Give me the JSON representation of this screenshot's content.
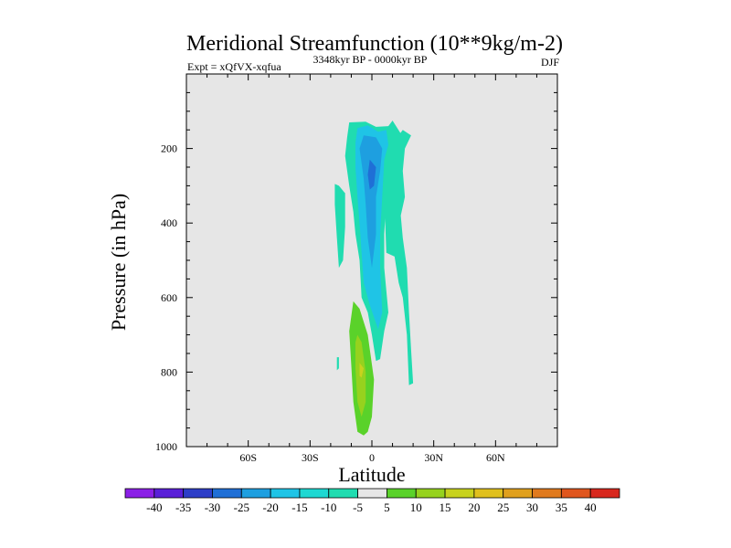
{
  "chart_data": {
    "type": "contour",
    "title": "Meridional Streamfunction (10**9kg/m-2)",
    "subtitle_left": "Expt = xQfVX-xqfua",
    "subtitle_center": "3348kyr BP - 0000kyr BP",
    "subtitle_right": "DJF",
    "xlabel": "Latitude",
    "ylabel": "Pressure (in hPa)",
    "xlim": [
      -90,
      90
    ],
    "ylim": [
      0,
      1000
    ],
    "y_inverted": true,
    "x_ticks": [
      {
        "value": -60,
        "label": "60S"
      },
      {
        "value": -30,
        "label": "30S"
      },
      {
        "value": 0,
        "label": "0"
      },
      {
        "value": 30,
        "label": "30N"
      },
      {
        "value": 60,
        "label": "60N"
      }
    ],
    "y_ticks": [
      {
        "value": 200,
        "label": "200"
      },
      {
        "value": 400,
        "label": "400"
      },
      {
        "value": 600,
        "label": "600"
      },
      {
        "value": 800,
        "label": "800"
      },
      {
        "value": 1000,
        "label": "1000"
      }
    ],
    "colorbar": {
      "labels": [
        "-40",
        "-35",
        "-30",
        "-25",
        "-20",
        "-15",
        "-10",
        "-5",
        "5",
        "10",
        "15",
        "20",
        "25",
        "30",
        "35",
        "40"
      ],
      "colors": [
        "#8b1fe6",
        "#5a1fd8",
        "#2d3ec8",
        "#1f6fd6",
        "#1e9fe0",
        "#1fc4e6",
        "#1ed8d2",
        "#20dcb0",
        "#e6e6e6",
        "#5ad22a",
        "#96d21e",
        "#c8d21e",
        "#e0c01e",
        "#e0a01e",
        "#e07a1e",
        "#e0561e",
        "#d8281e"
      ]
    },
    "regions": [
      {
        "name": "northern-band",
        "color": "#20dcb0",
        "points": [
          [
            15,
            150
          ],
          [
            19,
            165
          ],
          [
            16,
            200
          ],
          [
            15,
            260
          ],
          [
            16,
            330
          ],
          [
            14,
            380
          ],
          [
            15,
            440
          ],
          [
            17,
            520
          ],
          [
            18,
            640
          ],
          [
            19,
            740
          ],
          [
            20,
            830
          ],
          [
            18,
            835
          ],
          [
            17,
            700
          ],
          [
            15,
            600
          ],
          [
            13,
            560
          ],
          [
            11,
            490
          ],
          [
            7,
            480
          ],
          [
            6,
            330
          ],
          [
            5,
            255
          ],
          [
            4,
            230
          ]
        ]
      },
      {
        "name": "central-column",
        "color": "#20dcb0",
        "points": [
          [
            -11,
            130
          ],
          [
            -3,
            128
          ],
          [
            2,
            142
          ],
          [
            8,
            140
          ],
          [
            10,
            125
          ],
          [
            14,
            160
          ],
          [
            12,
            220
          ],
          [
            8,
            260
          ],
          [
            7,
            330
          ],
          [
            6,
            430
          ],
          [
            6,
            520
          ],
          [
            8,
            640
          ],
          [
            6,
            690
          ],
          [
            4,
            765
          ],
          [
            2,
            770
          ],
          [
            0,
            700
          ],
          [
            -2,
            640
          ],
          [
            -5,
            600
          ],
          [
            -6,
            500
          ],
          [
            -8,
            430
          ],
          [
            -9,
            370
          ],
          [
            -11,
            300
          ],
          [
            -13,
            220
          ],
          [
            -12,
            170
          ]
        ]
      },
      {
        "name": "upper-core",
        "color": "#1fc4e6",
        "points": [
          [
            -7,
            145
          ],
          [
            -2,
            138
          ],
          [
            3,
            155
          ],
          [
            7,
            150
          ],
          [
            8,
            190
          ],
          [
            6,
            230
          ],
          [
            5,
            330
          ],
          [
            4,
            430
          ],
          [
            4,
            520
          ],
          [
            5,
            640
          ],
          [
            3,
            685
          ],
          [
            -1,
            620
          ],
          [
            -4,
            560
          ],
          [
            -5,
            480
          ],
          [
            -6,
            400
          ],
          [
            -7,
            330
          ],
          [
            -8,
            250
          ],
          [
            -8,
            185
          ]
        ]
      },
      {
        "name": "mid-core",
        "color": "#1e9fe0",
        "points": [
          [
            -4,
            165
          ],
          [
            2,
            170
          ],
          [
            5,
            200
          ],
          [
            4,
            260
          ],
          [
            2,
            330
          ],
          [
            2,
            430
          ],
          [
            0,
            520
          ],
          [
            -2,
            440
          ],
          [
            -3,
            350
          ],
          [
            -4,
            280
          ],
          [
            -6,
            200
          ]
        ]
      },
      {
        "name": "inner-core",
        "color": "#1f6fd6",
        "points": [
          [
            -1,
            230
          ],
          [
            2,
            250
          ],
          [
            1,
            300
          ],
          [
            -1,
            310
          ],
          [
            -2,
            270
          ]
        ]
      },
      {
        "name": "western-band",
        "color": "#20dcb0",
        "points": [
          [
            -18,
            295
          ],
          [
            -16,
            300
          ],
          [
            -13,
            320
          ],
          [
            -13,
            410
          ],
          [
            -14,
            500
          ],
          [
            -16,
            520
          ],
          [
            -17,
            440
          ],
          [
            -18,
            350
          ]
        ]
      },
      {
        "name": "lower-western-bit",
        "color": "#20dcb0",
        "points": [
          [
            -17,
            760
          ],
          [
            -16,
            760
          ],
          [
            -16,
            790
          ],
          [
            -17,
            795
          ]
        ]
      },
      {
        "name": "lower-lobe-outer",
        "color": "#5ad22a",
        "points": [
          [
            -9,
            610
          ],
          [
            -6,
            630
          ],
          [
            -2,
            700
          ],
          [
            1,
            820
          ],
          [
            0,
            920
          ],
          [
            -2,
            960
          ],
          [
            -4,
            970
          ],
          [
            -7,
            960
          ],
          [
            -9,
            880
          ],
          [
            -10,
            780
          ],
          [
            -11,
            690
          ]
        ]
      },
      {
        "name": "lower-lobe-inner",
        "color": "#96d21e",
        "points": [
          [
            -7,
            700
          ],
          [
            -5,
            720
          ],
          [
            -3,
            800
          ],
          [
            -3,
            880
          ],
          [
            -5,
            920
          ],
          [
            -7,
            880
          ],
          [
            -8,
            790
          ],
          [
            -8,
            720
          ]
        ]
      },
      {
        "name": "lower-lobe-peak",
        "color": "#c8d21e",
        "points": [
          [
            -6,
            775
          ],
          [
            -4,
            790
          ],
          [
            -5,
            815
          ],
          [
            -6,
            810
          ]
        ]
      }
    ]
  }
}
